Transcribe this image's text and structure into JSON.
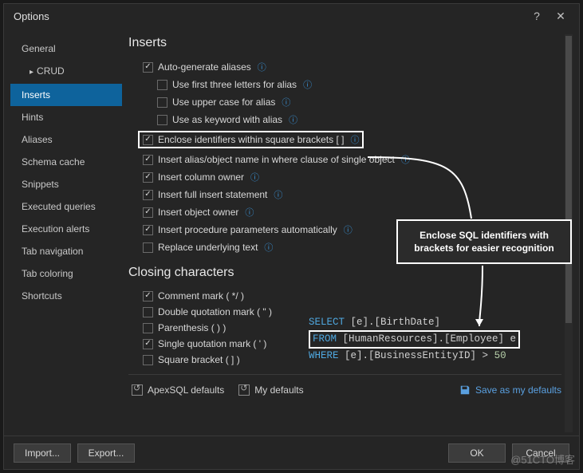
{
  "window": {
    "title": "Options"
  },
  "sidebar": {
    "items": [
      {
        "label": "General",
        "indent": false
      },
      {
        "label": "CRUD",
        "indent": true
      },
      {
        "label": "Inserts",
        "indent": false,
        "active": true
      },
      {
        "label": "Hints",
        "indent": false
      },
      {
        "label": "Aliases",
        "indent": false
      },
      {
        "label": "Schema cache",
        "indent": false
      },
      {
        "label": "Snippets",
        "indent": false
      },
      {
        "label": "Executed queries",
        "indent": false
      },
      {
        "label": "Execution alerts",
        "indent": false
      },
      {
        "label": "Tab navigation",
        "indent": false
      },
      {
        "label": "Tab coloring",
        "indent": false
      },
      {
        "label": "Shortcuts",
        "indent": false
      }
    ]
  },
  "sections": {
    "inserts_title": "Inserts",
    "closing_title": "Closing characters"
  },
  "options": {
    "auto_aliases": {
      "label": "Auto-generate aliases",
      "checked": true
    },
    "first_three": {
      "label": "Use first three letters for alias",
      "checked": false
    },
    "upper_case": {
      "label": "Use upper case for alias",
      "checked": false
    },
    "as_keyword": {
      "label": "Use as keyword with alias",
      "checked": false
    },
    "enclose_brackets": {
      "label": "Enclose identifiers within square brackets [ ]",
      "checked": true
    },
    "insert_alias_where": {
      "label": "Insert alias/object name in where clause of single object",
      "checked": true
    },
    "column_owner": {
      "label": "Insert column owner",
      "checked": true
    },
    "full_insert": {
      "label": "Insert full insert statement",
      "checked": true
    },
    "object_owner": {
      "label": "Insert object owner",
      "checked": true
    },
    "proc_params": {
      "label": "Insert procedure parameters automatically",
      "checked": true
    },
    "replace_underlying": {
      "label": "Replace underlying text",
      "checked": false
    },
    "comment_mark": {
      "label": "Comment mark ( */ )",
      "checked": true
    },
    "double_quote": {
      "label": "Double quotation mark ( \" )",
      "checked": false
    },
    "parenthesis": {
      "label": "Parenthesis ( ) )",
      "checked": false
    },
    "single_quote": {
      "label": "Single quotation mark ( ' )",
      "checked": true
    },
    "square_bracket": {
      "label": "Square bracket ( ] )",
      "checked": false
    }
  },
  "defaults": {
    "apex": "ApexSQL defaults",
    "my": "My defaults",
    "save": "Save as my defaults"
  },
  "footer": {
    "import": "Import...",
    "export": "Export...",
    "ok": "OK",
    "cancel": "Cancel"
  },
  "callout": {
    "text": "Enclose SQL identifiers with brackets for easier recognition"
  },
  "sql": {
    "line1_kw": "SELECT",
    "line1_rest": " [e].[BirthDate]",
    "line2_kw": "FROM",
    "line2_rest": " [HumanResources].[Employee] e",
    "line3_kw": "WHERE",
    "line3_rest_a": " [e].[BusinessEntityID] ",
    "line3_op": ">",
    "line3_num": " 50"
  },
  "watermark": "@51CTO博客",
  "colors": {
    "accent": "#0e639c",
    "info_icon": "#3a96dd",
    "keyword": "#4fa8e0",
    "bg": "#252525",
    "border": "#3a3a3a"
  }
}
